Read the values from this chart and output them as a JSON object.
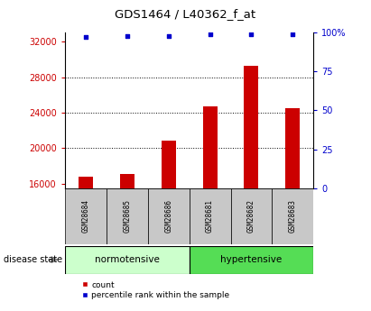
{
  "title": "GDS1464 / L40362_f_at",
  "samples": [
    "GSM28684",
    "GSM28685",
    "GSM28686",
    "GSM28681",
    "GSM28682",
    "GSM28683"
  ],
  "count_values": [
    16800,
    17100,
    20800,
    24700,
    29300,
    24500
  ],
  "percentile_values": [
    97,
    98,
    98,
    99,
    99,
    99
  ],
  "bar_color": "#CC0000",
  "dot_color": "#0000CC",
  "ylim_left": [
    15500,
    33000
  ],
  "ylim_right": [
    0,
    100
  ],
  "yticks_left": [
    16000,
    20000,
    24000,
    28000,
    32000
  ],
  "yticks_right": [
    0,
    25,
    50,
    75,
    100
  ],
  "grid_values": [
    20000,
    24000,
    28000
  ],
  "background_color": "#ffffff",
  "axis_label_color_left": "#CC0000",
  "axis_label_color_right": "#0000CC",
  "sample_box_color": "#C8C8C8",
  "group_label_normotensive": "normotensive",
  "group_label_hypertensive": "hypertensive",
  "disease_state_label": "disease state",
  "legend_count": "count",
  "legend_percentile": "percentile rank within the sample",
  "normotensive_color": "#CCFFCC",
  "hypertensive_color": "#55DD55",
  "bar_width": 0.35
}
